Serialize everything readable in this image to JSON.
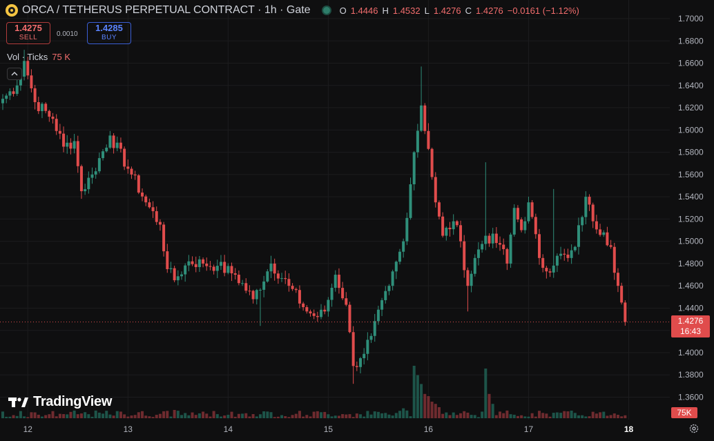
{
  "header": {
    "title": "ORCA / TETHERUS PERPETUAL CONTRACT · 1h · Gate",
    "ohlc": {
      "o_label": "O",
      "o": "1.4446",
      "h_label": "H",
      "h": "1.4532",
      "l_label": "L",
      "l": "1.4276",
      "c_label": "C",
      "c": "1.4276",
      "change": "−0.0161 (−1.12%)"
    }
  },
  "trade": {
    "sell_price": "1.4275",
    "sell_label": "SELL",
    "spread": "0.0010",
    "buy_price": "1.4285",
    "buy_label": "BUY"
  },
  "volume_legend": {
    "label": "Vol · Ticks",
    "value": "75 K"
  },
  "watermark": "TradingView",
  "last_price": {
    "price": "1.4276",
    "countdown": "16:43"
  },
  "volume_tag": "75K",
  "colors": {
    "up": "#2f8f7a",
    "down": "#e04c4c",
    "background": "#0f0f10"
  },
  "chart_data": {
    "type": "candlestick",
    "interval": "1h",
    "ylim": [
      1.347,
      1.712
    ],
    "y_ticks": [
      "1.7000",
      "1.6800",
      "1.6600",
      "1.6400",
      "1.6200",
      "1.6000",
      "1.5800",
      "1.5600",
      "1.5400",
      "1.5200",
      "1.5000",
      "1.4800",
      "1.4600",
      "1.4400",
      "1.4200",
      "1.4000",
      "1.3800",
      "1.3600"
    ],
    "x_ticks": [
      "12",
      "13",
      "14",
      "15",
      "16",
      "17",
      "18"
    ],
    "anchors": [
      {
        "i": 0,
        "p": 1.628
      },
      {
        "i": 4,
        "p": 1.64
      },
      {
        "i": 6,
        "p": 1.662
      },
      {
        "i": 9,
        "p": 1.625
      },
      {
        "i": 14,
        "p": 1.61
      },
      {
        "i": 17,
        "p": 1.585
      },
      {
        "i": 20,
        "p": 1.59
      },
      {
        "i": 22,
        "p": 1.545
      },
      {
        "i": 25,
        "p": 1.56
      },
      {
        "i": 30,
        "p": 1.595
      },
      {
        "i": 36,
        "p": 1.56
      },
      {
        "i": 40,
        "p": 1.535
      },
      {
        "i": 44,
        "p": 1.515
      },
      {
        "i": 46,
        "p": 1.475
      },
      {
        "i": 48,
        "p": 1.465
      },
      {
        "i": 52,
        "p": 1.482
      },
      {
        "i": 56,
        "p": 1.48
      },
      {
        "i": 60,
        "p": 1.478
      },
      {
        "i": 65,
        "p": 1.47
      },
      {
        "i": 70,
        "p": 1.448
      },
      {
        "i": 75,
        "p": 1.48
      },
      {
        "i": 80,
        "p": 1.46
      },
      {
        "i": 85,
        "p": 1.437
      },
      {
        "i": 88,
        "p": 1.432
      },
      {
        "i": 90,
        "p": 1.437
      },
      {
        "i": 93,
        "p": 1.47
      },
      {
        "i": 96,
        "p": 1.443
      },
      {
        "i": 98,
        "p": 1.388
      },
      {
        "i": 100,
        "p": 1.395
      },
      {
        "i": 103,
        "p": 1.415
      },
      {
        "i": 108,
        "p": 1.46
      },
      {
        "i": 112,
        "p": 1.5
      },
      {
        "i": 115,
        "p": 1.58
      },
      {
        "i": 117,
        "p": 1.622
      },
      {
        "i": 119,
        "p": 1.583
      },
      {
        "i": 121,
        "p": 1.535
      },
      {
        "i": 123,
        "p": 1.505
      },
      {
        "i": 126,
        "p": 1.518
      },
      {
        "i": 128,
        "p": 1.5
      },
      {
        "i": 130,
        "p": 1.46
      },
      {
        "i": 132,
        "p": 1.485
      },
      {
        "i": 135,
        "p": 1.505
      },
      {
        "i": 139,
        "p": 1.497
      },
      {
        "i": 141,
        "p": 1.48
      },
      {
        "i": 143,
        "p": 1.53
      },
      {
        "i": 145,
        "p": 1.51
      },
      {
        "i": 147,
        "p": 1.535
      },
      {
        "i": 150,
        "p": 1.485
      },
      {
        "i": 152,
        "p": 1.473
      },
      {
        "i": 155,
        "p": 1.487
      },
      {
        "i": 158,
        "p": 1.485
      },
      {
        "i": 160,
        "p": 1.495
      },
      {
        "i": 163,
        "p": 1.54
      },
      {
        "i": 165,
        "p": 1.518
      },
      {
        "i": 168,
        "p": 1.508
      },
      {
        "i": 170,
        "p": 1.495
      },
      {
        "i": 172,
        "p": 1.46
      },
      {
        "i": 173,
        "p": 1.445
      },
      {
        "i": 174,
        "p": 1.4276
      }
    ],
    "spikes": [
      {
        "i": 6,
        "h": 1.672
      },
      {
        "i": 117,
        "h": 1.657
      },
      {
        "i": 135,
        "h": 1.571
      },
      {
        "i": 98,
        "l": 1.372
      },
      {
        "i": 72,
        "l": 1.424
      },
      {
        "i": 89,
        "l": 1.43
      },
      {
        "i": 130,
        "l": 1.437
      },
      {
        "i": 154,
        "h": 1.547
      }
    ],
    "volume_scale_max": 100,
    "volume_spikes": [
      {
        "i": 115,
        "v": 95
      },
      {
        "i": 116,
        "v": 78
      },
      {
        "i": 117,
        "v": 62
      },
      {
        "i": 118,
        "v": 44
      },
      {
        "i": 119,
        "v": 40
      },
      {
        "i": 120,
        "v": 30
      },
      {
        "i": 121,
        "v": 26
      },
      {
        "i": 122,
        "v": 20
      },
      {
        "i": 135,
        "v": 90
      },
      {
        "i": 136,
        "v": 44
      },
      {
        "i": 137,
        "v": 26
      },
      {
        "i": 175,
        "v": 40
      },
      {
        "i": 112,
        "v": 18
      },
      {
        "i": 113,
        "v": 14
      },
      {
        "i": 48,
        "v": 15
      },
      {
        "i": 5,
        "v": 13
      }
    ]
  }
}
